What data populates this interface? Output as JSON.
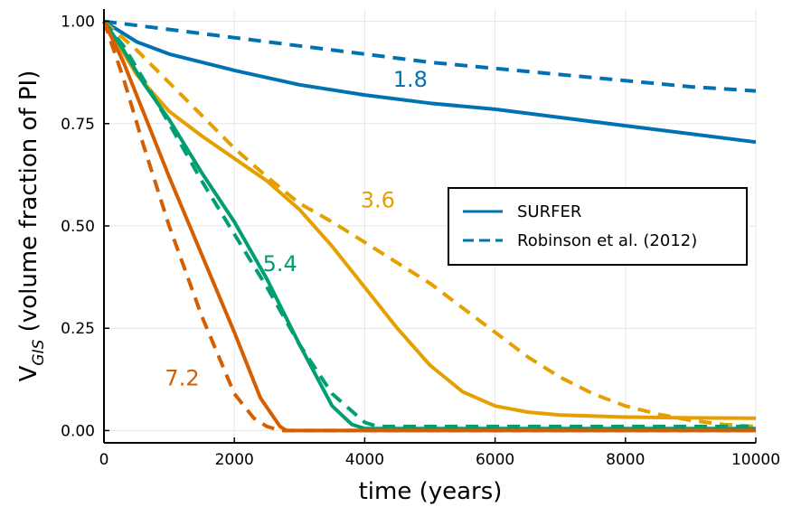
{
  "chart_data": {
    "type": "line",
    "xlabel": "time (years)",
    "ylabel_main": "V",
    "ylabel_sub": "GIS",
    "ylabel_rest": " (volume fraction of PI)",
    "xlim": [
      0,
      10000
    ],
    "ylim": [
      -0.03,
      1.03
    ],
    "xticks": [
      0,
      2000,
      4000,
      6000,
      8000,
      10000
    ],
    "xtick_labels": [
      "0",
      "2000",
      "4000",
      "6000",
      "8000",
      "10000"
    ],
    "yticks": [
      0,
      0.25,
      0.5,
      0.75,
      1.0
    ],
    "ytick_labels": [
      "0.00",
      "0.25",
      "0.50",
      "0.75",
      "1.00"
    ],
    "grid": true,
    "legend": {
      "position": "right-middle",
      "entries": [
        {
          "label": "SURFER",
          "style": "solid"
        },
        {
          "label": "Robinson et al. (2012)",
          "style": "dashed"
        }
      ]
    },
    "series": [
      {
        "group": "1.8",
        "style": "solid",
        "color": "#0072b2",
        "x": [
          0,
          500,
          1000,
          2000,
          3000,
          4000,
          5000,
          6000,
          7000,
          8000,
          9000,
          10000
        ],
        "y": [
          1.0,
          0.95,
          0.92,
          0.88,
          0.845,
          0.82,
          0.8,
          0.785,
          0.765,
          0.745,
          0.725,
          0.705
        ]
      },
      {
        "group": "1.8",
        "style": "dashed",
        "color": "#0072b2",
        "x": [
          0,
          1000,
          2000,
          3000,
          4000,
          5000,
          6000,
          7000,
          8000,
          9000,
          10000
        ],
        "y": [
          1.0,
          0.98,
          0.96,
          0.94,
          0.92,
          0.9,
          0.885,
          0.87,
          0.855,
          0.84,
          0.83
        ]
      },
      {
        "group": "3.6",
        "style": "solid",
        "color": "#e69f00",
        "x": [
          0,
          500,
          1000,
          1500,
          2000,
          2500,
          3000,
          3500,
          4000,
          4500,
          5000,
          5500,
          6000,
          6500,
          7000,
          8000,
          9000,
          10000
        ],
        "y": [
          1.0,
          0.87,
          0.78,
          0.72,
          0.665,
          0.61,
          0.54,
          0.45,
          0.35,
          0.25,
          0.16,
          0.095,
          0.06,
          0.045,
          0.038,
          0.033,
          0.031,
          0.03
        ]
      },
      {
        "group": "3.6",
        "style": "dashed",
        "color": "#e69f00",
        "x": [
          0,
          500,
          1000,
          1500,
          2000,
          2500,
          3000,
          3500,
          4000,
          4500,
          5000,
          5500,
          6000,
          6500,
          7000,
          7500,
          8000,
          8500,
          9000,
          9500,
          10000
        ],
        "y": [
          1.0,
          0.93,
          0.85,
          0.77,
          0.69,
          0.62,
          0.555,
          0.51,
          0.46,
          0.41,
          0.36,
          0.3,
          0.24,
          0.18,
          0.13,
          0.09,
          0.06,
          0.04,
          0.025,
          0.015,
          0.01
        ]
      },
      {
        "group": "5.4",
        "style": "solid",
        "color": "#009e73",
        "x": [
          0,
          300,
          600,
          1000,
          1500,
          2000,
          2500,
          3000,
          3500,
          3800,
          4000,
          4500,
          5000,
          6000,
          8000,
          10000
        ],
        "y": [
          1.0,
          0.93,
          0.85,
          0.76,
          0.63,
          0.51,
          0.37,
          0.21,
          0.06,
          0.015,
          0.005,
          0.005,
          0.005,
          0.005,
          0.005,
          0.005
        ]
      },
      {
        "group": "5.4",
        "style": "dashed",
        "color": "#009e73",
        "x": [
          0,
          300,
          600,
          1000,
          1500,
          2000,
          2500,
          3000,
          3500,
          4000,
          4200,
          4500,
          5000,
          6000,
          8000,
          10000
        ],
        "y": [
          1.0,
          0.94,
          0.86,
          0.75,
          0.61,
          0.48,
          0.35,
          0.21,
          0.09,
          0.02,
          0.01,
          0.01,
          0.01,
          0.01,
          0.01,
          0.01
        ]
      },
      {
        "group": "7.2",
        "style": "solid",
        "color": "#d55e00",
        "x": [
          0,
          300,
          600,
          1000,
          1500,
          2000,
          2400,
          2700,
          2800,
          3000,
          4000,
          6000,
          8000,
          10000
        ],
        "y": [
          1.0,
          0.9,
          0.78,
          0.62,
          0.43,
          0.24,
          0.08,
          0.01,
          0.0,
          0.0,
          0.0,
          0.0,
          0.0,
          0.0
        ]
      },
      {
        "group": "7.2",
        "style": "dashed",
        "color": "#d55e00",
        "x": [
          0,
          300,
          600,
          1000,
          1500,
          2000,
          2300,
          2500,
          2700,
          3000,
          4000,
          6000,
          8000,
          10000
        ],
        "y": [
          1.0,
          0.86,
          0.7,
          0.5,
          0.28,
          0.09,
          0.03,
          0.01,
          0.0,
          0.0,
          0.0,
          0.0,
          0.0,
          0.0
        ]
      }
    ],
    "annotations": [
      {
        "text": "1.8",
        "x": 4700,
        "y": 0.84,
        "color": "#0072b2"
      },
      {
        "text": "3.6",
        "x": 4200,
        "y": 0.545,
        "color": "#e69f00"
      },
      {
        "text": "5.4",
        "x": 2700,
        "y": 0.39,
        "color": "#009e73"
      },
      {
        "text": "7.2",
        "x": 1200,
        "y": 0.11,
        "color": "#d55e00"
      }
    ]
  }
}
